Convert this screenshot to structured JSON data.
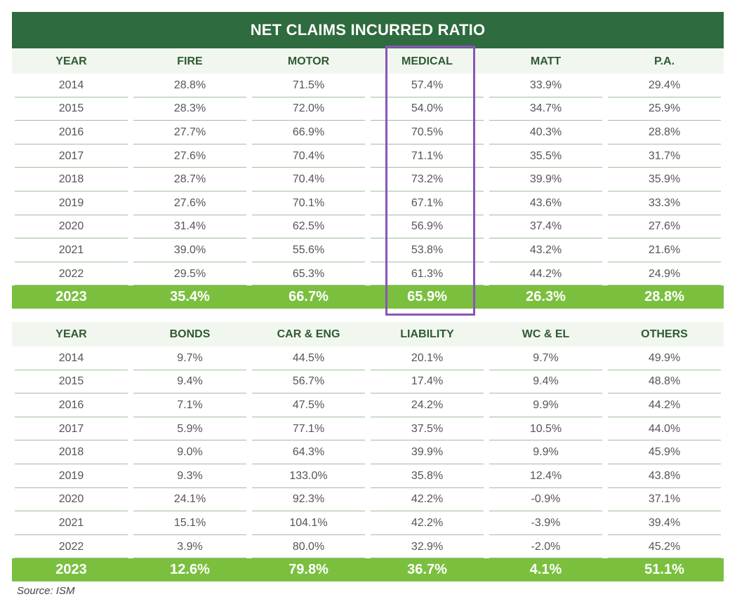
{
  "chart_data": [
    {
      "type": "table",
      "title": "NET CLAIMS INCURRED RATIO",
      "columns": [
        "YEAR",
        "FIRE",
        "MOTOR",
        "MEDICAL",
        "MATT",
        "P.A."
      ],
      "rows": [
        [
          "2014",
          "28.8%",
          "71.5%",
          "57.4%",
          "33.9%",
          "29.4%"
        ],
        [
          "2015",
          "28.3%",
          "72.0%",
          "54.0%",
          "34.7%",
          "25.9%"
        ],
        [
          "2016",
          "27.7%",
          "66.9%",
          "70.5%",
          "40.3%",
          "28.8%"
        ],
        [
          "2017",
          "27.6%",
          "70.4%",
          "71.1%",
          "35.5%",
          "31.7%"
        ],
        [
          "2018",
          "28.7%",
          "70.4%",
          "73.2%",
          "39.9%",
          "35.9%"
        ],
        [
          "2019",
          "27.6%",
          "70.1%",
          "67.1%",
          "43.6%",
          "33.3%"
        ],
        [
          "2020",
          "31.4%",
          "62.5%",
          "56.9%",
          "37.4%",
          "27.6%"
        ],
        [
          "2021",
          "39.0%",
          "55.6%",
          "53.8%",
          "43.2%",
          "21.6%"
        ],
        [
          "2022",
          "29.5%",
          "65.3%",
          "61.3%",
          "44.2%",
          "24.9%"
        ]
      ],
      "total_row": [
        "2023",
        "35.4%",
        "66.7%",
        "65.9%",
        "26.3%",
        "28.8%"
      ],
      "highlighted_column": "MEDICAL",
      "highlight_color": "#8a55b8"
    },
    {
      "type": "table",
      "columns": [
        "YEAR",
        "BONDS",
        "CAR & ENG",
        "LIABILITY",
        "WC & EL",
        "OTHERS"
      ],
      "rows": [
        [
          "2014",
          "9.7%",
          "44.5%",
          "20.1%",
          "9.7%",
          "49.9%"
        ],
        [
          "2015",
          "9.4%",
          "56.7%",
          "17.4%",
          "9.4%",
          "48.8%"
        ],
        [
          "2016",
          "7.1%",
          "47.5%",
          "24.2%",
          "9.9%",
          "44.2%"
        ],
        [
          "2017",
          "5.9%",
          "77.1%",
          "37.5%",
          "10.5%",
          "44.0%"
        ],
        [
          "2018",
          "9.0%",
          "64.3%",
          "39.9%",
          "9.9%",
          "45.9%"
        ],
        [
          "2019",
          "9.3%",
          "133.0%",
          "35.8%",
          "12.4%",
          "43.8%"
        ],
        [
          "2020",
          "24.1%",
          "92.3%",
          "42.2%",
          "-0.9%",
          "37.1%"
        ],
        [
          "2021",
          "15.1%",
          "104.1%",
          "42.2%",
          "-3.9%",
          "39.4%"
        ],
        [
          "2022",
          "3.9%",
          "80.0%",
          "32.9%",
          "-2.0%",
          "45.2%"
        ]
      ],
      "total_row": [
        "2023",
        "12.6%",
        "79.8%",
        "36.7%",
        "4.1%",
        "51.1%"
      ]
    }
  ],
  "source": "Source: ISM",
  "colors": {
    "title_bar": "#2e6b3e",
    "header_band": "#f1f7ee",
    "header_text": "#2e5a35",
    "total_row": "#7bbf3f",
    "row_rule": "#9fbf9a"
  }
}
